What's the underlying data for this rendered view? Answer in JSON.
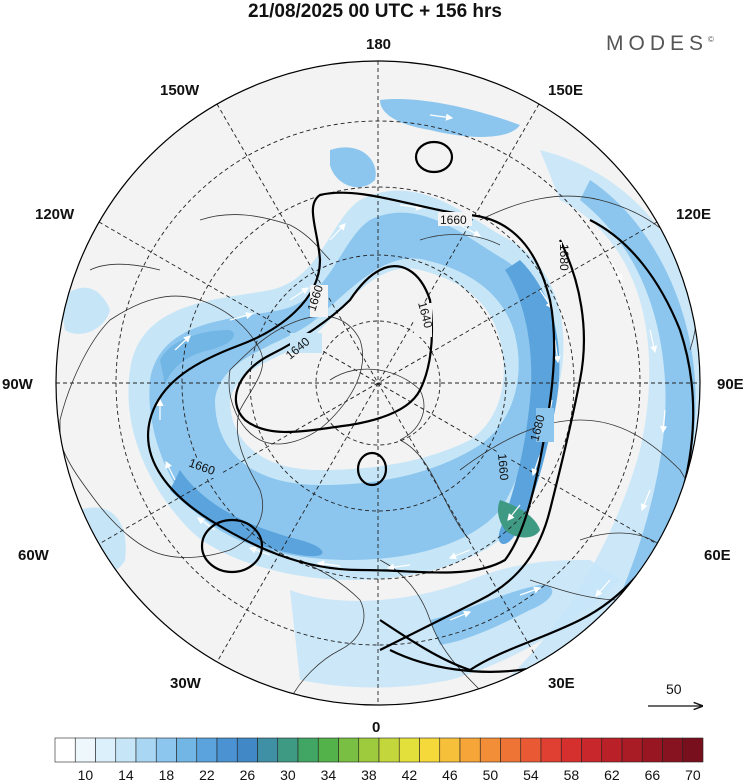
{
  "title": "21/08/2025  00 UTC  + 156 hrs",
  "brand": "MODES",
  "brand_mark": "©",
  "longitude_labels": {
    "lon_180": "180",
    "lon_150w": "150W",
    "lon_150e": "150E",
    "lon_120w": "120W",
    "lon_120e": "120E",
    "lon_90w": "90W",
    "lon_90e": "90E",
    "lon_60w": "60W",
    "lon_60e": "60E",
    "lon_30w": "30W",
    "lon_30e": "30E",
    "lon_0": "0"
  },
  "contour_labels": {
    "c1660_top": "1660",
    "c1680_ne": "1680",
    "c1660_nw": "1660",
    "c1640_n": "1640",
    "c1640_nw": "1640",
    "c1680_e": "1680",
    "c1660_se": "1660",
    "c1660_sw": "1660"
  },
  "vector_reference": {
    "label": "50"
  },
  "colorbar": {
    "labels": [
      "10",
      "14",
      "18",
      "22",
      "26",
      "30",
      "34",
      "38",
      "42",
      "46",
      "50",
      "54",
      "58",
      "62",
      "66",
      "70"
    ],
    "colors": [
      "#ffffff",
      "#eef7fc",
      "#dcf0fb",
      "#c6e6f8",
      "#a9d6f3",
      "#8cc6ee",
      "#72b6e6",
      "#5aa3dc",
      "#4a92d1",
      "#4189c6",
      "#3f8fa5",
      "#3f9a84",
      "#41a664",
      "#53b24a",
      "#78bf43",
      "#9ecb3e",
      "#c3d73c",
      "#e4e03b",
      "#f5d83a",
      "#f7c03a",
      "#f6a639",
      "#f28e38",
      "#ee7436",
      "#e95a34",
      "#e04031",
      "#d5302e",
      "#c8272b",
      "#b92028",
      "#a91b25",
      "#981622",
      "#871220",
      "#780f1d"
    ]
  },
  "colors": {
    "land": "#f0f0f0",
    "jet_light": "#c6e6f8",
    "jet_mid": "#8cc6ee",
    "jet_strong": "#5aa3dc",
    "jet_max": "#3f9a84"
  }
}
